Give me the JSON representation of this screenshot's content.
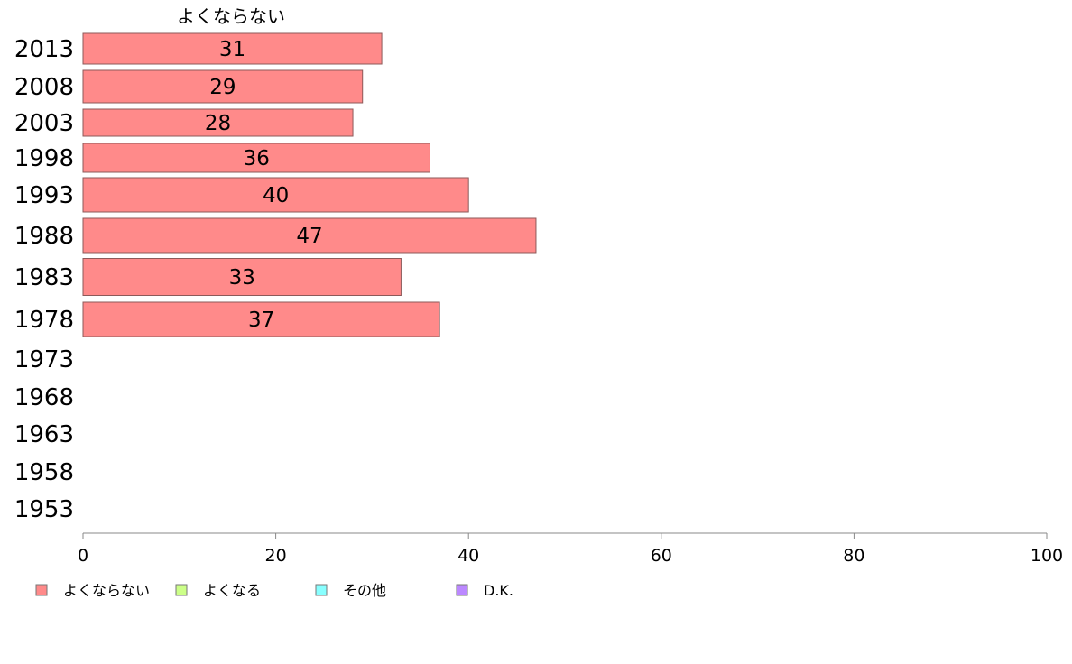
{
  "chart_data": {
    "type": "bar",
    "orientation": "horizontal",
    "series_title": "よくならない",
    "categories": [
      "2013",
      "2008",
      "2003",
      "1998",
      "1993",
      "1988",
      "1983",
      "1978",
      "1973",
      "1968",
      "1963",
      "1958",
      "1953"
    ],
    "series": [
      {
        "name": "よくならない",
        "color": "#ff8a8a",
        "values": [
          31,
          29,
          28,
          36,
          40,
          47,
          33,
          37,
          null,
          null,
          null,
          null,
          null
        ],
        "labels": [
          "31",
          "29",
          "28",
          "36",
          "40",
          "47",
          "33",
          "37",
          "",
          "",
          "",
          "",
          ""
        ]
      }
    ],
    "xlim": [
      0,
      100
    ],
    "xticks": [
      "0",
      "20",
      "40",
      "60",
      "80",
      "100"
    ],
    "grid": false,
    "legend": {
      "placement": "bottom-left",
      "items": [
        {
          "label": "よくならない",
          "color": "#ff8a8a"
        },
        {
          "label": "よくなる",
          "color": "#ccff88"
        },
        {
          "label": "その他",
          "color": "#88ffff"
        },
        {
          "label": "D.K.",
          "color": "#bb88ff"
        }
      ]
    }
  }
}
